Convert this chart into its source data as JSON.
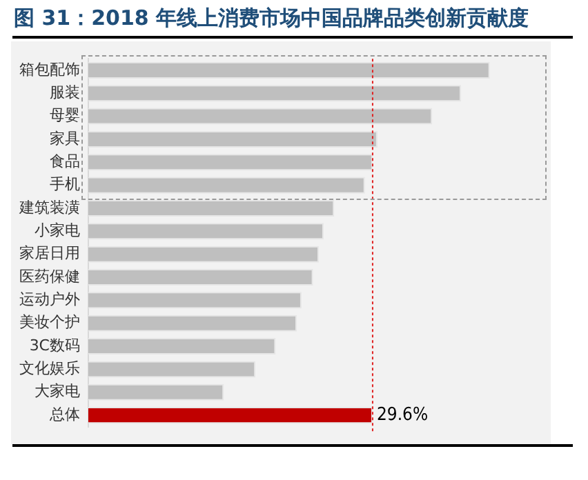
{
  "chart_data": {
    "type": "bar",
    "orientation": "horizontal",
    "title": "图 31：2018 年线上消费市场中国品牌品类创新贡献度",
    "categories": [
      "箱包配饰",
      "服装",
      "母婴",
      "家具",
      "食品",
      "手机",
      "建筑装潢",
      "小家电",
      "家居日用",
      "医药保健",
      "运动户外",
      "美妆个护",
      "3C数码",
      "文化娱乐",
      "大家电",
      "总体"
    ],
    "values": [
      41.8,
      38.8,
      35.8,
      30.1,
      29.6,
      28.8,
      25.6,
      24.5,
      24.0,
      23.4,
      22.2,
      21.7,
      19.5,
      17.4,
      14.1,
      29.6
    ],
    "colors": [
      "#bfbfbf",
      "#bfbfbf",
      "#bfbfbf",
      "#bfbfbf",
      "#bfbfbf",
      "#bfbfbf",
      "#bfbfbf",
      "#bfbfbf",
      "#bfbfbf",
      "#bfbfbf",
      "#bfbfbf",
      "#bfbfbf",
      "#bfbfbf",
      "#bfbfbf",
      "#bfbfbf",
      "#c00000"
    ],
    "value_labels": [
      null,
      null,
      null,
      null,
      null,
      null,
      null,
      null,
      null,
      null,
      null,
      null,
      null,
      null,
      null,
      "29.6%"
    ],
    "xlim": [
      0,
      48
    ],
    "ref_lines": [
      {
        "axis": "x",
        "value": 29.6,
        "color": "#e02020",
        "line_style": "dotted"
      }
    ],
    "tick_labels": "y",
    "grid": false,
    "legend": false
  }
}
